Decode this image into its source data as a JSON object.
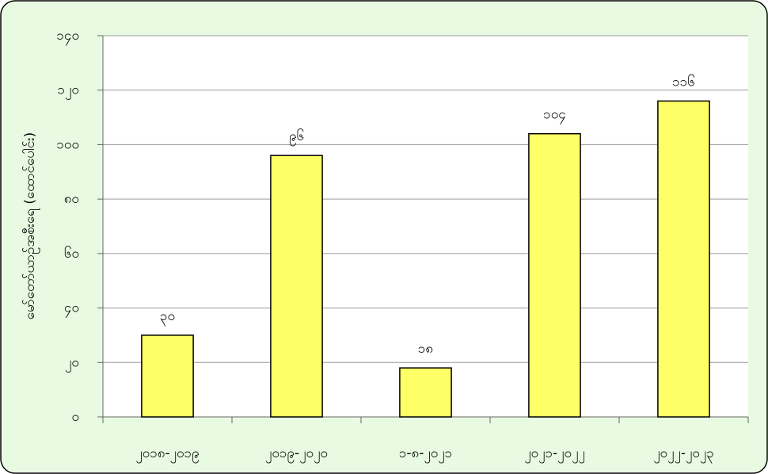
{
  "chart_data": {
    "type": "bar",
    "y_label": "မော်တော်ယာဉ်အစီးရေ (ထောင်ပေါင်း)",
    "categories": [
      "၂၀၁၈-၂၀၁၉",
      "၂၀၁၉-၂၀၂၀",
      "၁-၈-၂၀၂၁",
      "၂၀၂၁-၂၀၂၂",
      "၂၀၂၂-၂၀၂၃"
    ],
    "values": [
      30,
      96,
      18,
      104,
      116
    ],
    "value_labels": [
      "၃၀",
      "၉၆",
      "၁၈",
      "၁၀၄",
      "၁၁၆"
    ],
    "color": "#ffff66",
    "ylim": [
      0,
      140
    ],
    "yticks": [
      {
        "value": 0,
        "label": "၀"
      },
      {
        "value": 20,
        "label": "၂၀"
      },
      {
        "value": 40,
        "label": "၄၀"
      },
      {
        "value": 60,
        "label": "၆၀"
      },
      {
        "value": 80,
        "label": "၈၀"
      },
      {
        "value": 100,
        "label": "၁၀၀"
      },
      {
        "value": 120,
        "label": "၁၂၀"
      },
      {
        "value": 140,
        "label": "၁၄၀"
      }
    ],
    "grid": true
  }
}
